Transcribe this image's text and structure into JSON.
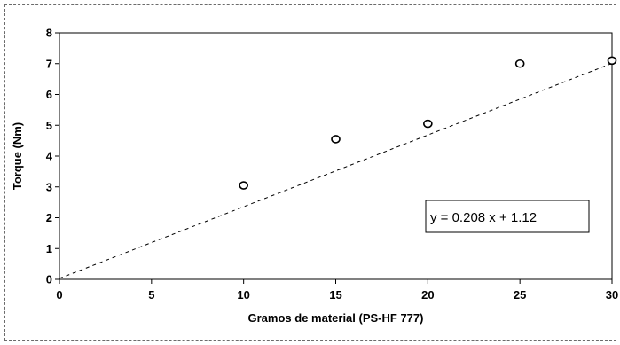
{
  "chart_data": {
    "type": "scatter",
    "xlabel": "Gramos de material (PS-HF 777)",
    "ylabel": "Torque (Nm)",
    "xlim": [
      0,
      30
    ],
    "ylim": [
      0,
      8
    ],
    "x_ticks": [
      "0",
      "5",
      "10",
      "15",
      "20",
      "25",
      "30"
    ],
    "y_ticks": [
      "0",
      "1",
      "2",
      "3",
      "4",
      "5",
      "6",
      "7",
      "8"
    ],
    "grid": false,
    "series": [
      {
        "x": [
          10,
          15,
          20,
          25,
          30
        ],
        "y": [
          3.05,
          4.55,
          5.05,
          7.0,
          7.1
        ]
      }
    ],
    "trendline": {
      "slope": 0.208,
      "intercept": 1.12,
      "style": "dashed",
      "range": [
        0,
        30
      ]
    },
    "annotation": {
      "text": "y = 0.208 x + 1.12",
      "placement": "lower-right"
    }
  }
}
